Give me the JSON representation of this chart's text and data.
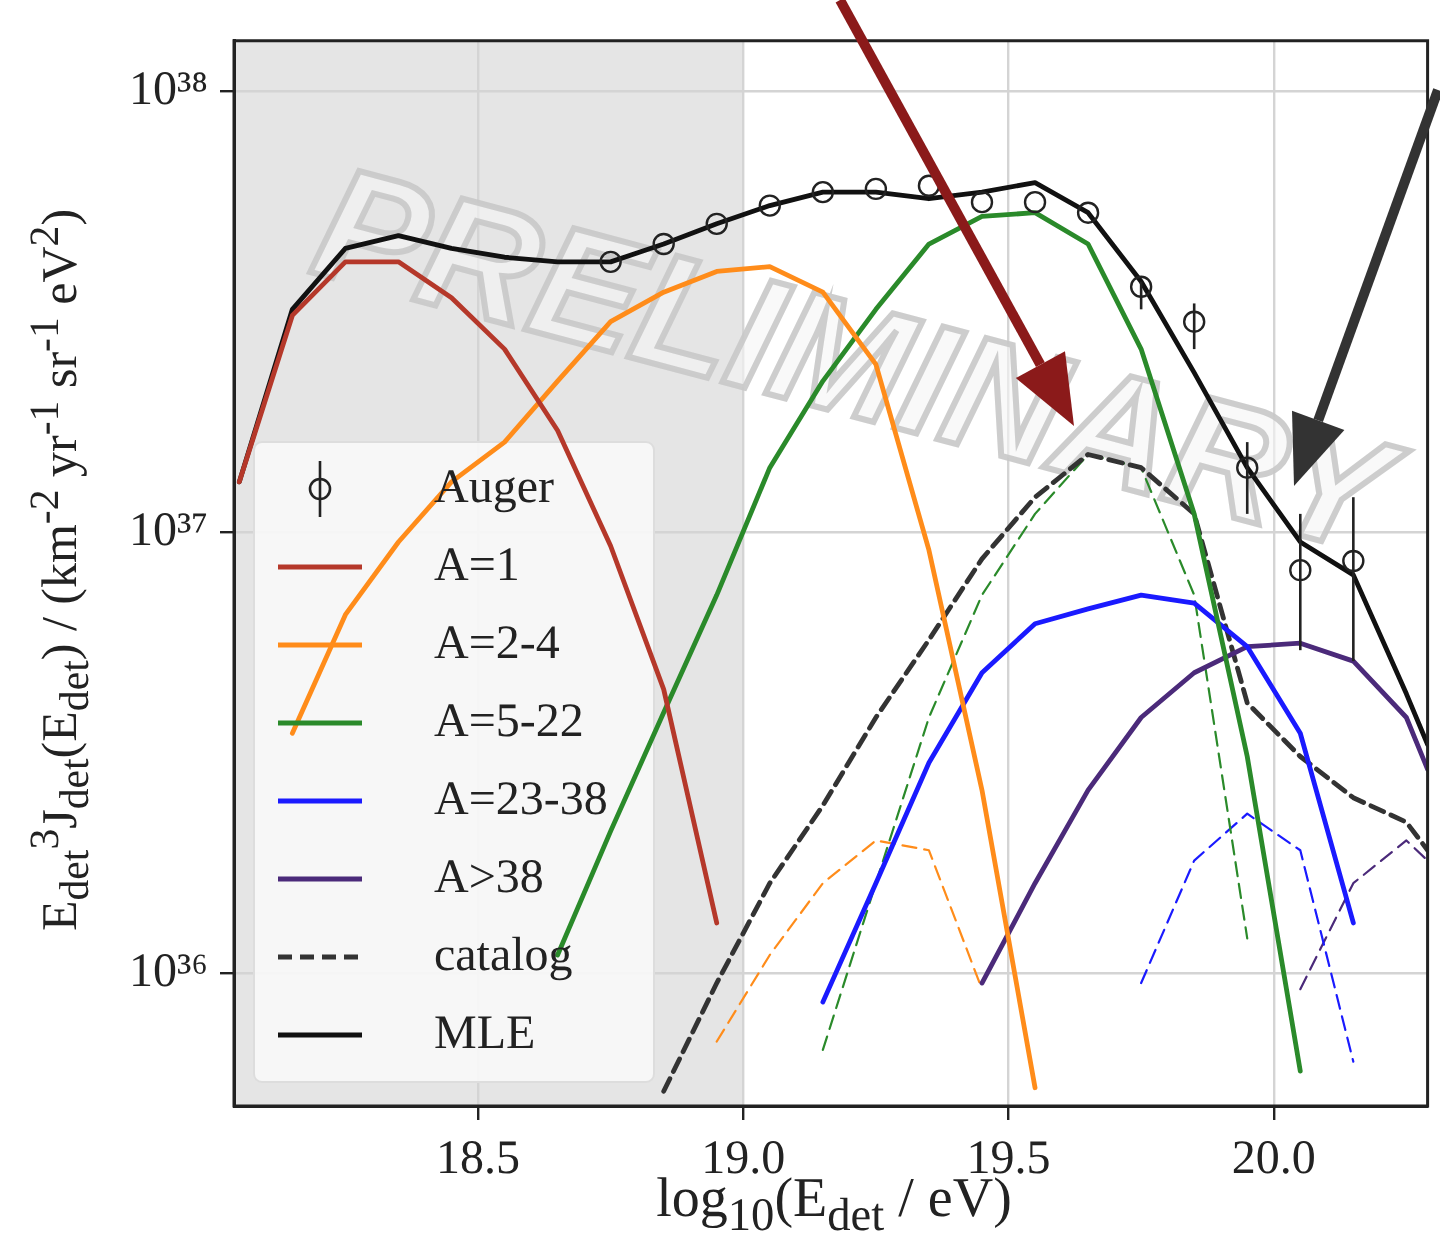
{
  "chart_data": {
    "type": "line",
    "xlabel": "log$_{10}$(E$_{det}$ / eV)",
    "ylabel": "E$_{det}$$^{3}$J$_{det}$(E$_{det}$) / (km$^{-2}$ yr$^{-1}$ sr$^{-1}$ eV$^{2}$)",
    "annotations": [
      "PRELIMINARY"
    ],
    "xlim": [
      18.04,
      20.29
    ],
    "xticks": [
      18.5,
      {
        "value": 19,
        "label": "19.0"
      },
      19.5,
      {
        "value": 20,
        "label": "20.0"
      }
    ],
    "ylim": [
      5e+35,
      1.3e+38
    ],
    "yticks": [
      {
        "value": 1e+36,
        "label": "10³⁶"
      },
      {
        "value": 1e+37,
        "label": "10³⁷"
      },
      {
        "value": 1e+38,
        "label": "10³⁸"
      }
    ],
    "log": true,
    "grid": true,
    "legend": "bottom left",
    "line_style": "solid",
    "marker": "none",
    "bands": [
      {
        "axis": "x",
        "from": 18.04,
        "to": 19.0,
        "color": "#e5e5e5"
      }
    ],
    "series": [
      {
        "name": "Auger",
        "type": "scatter",
        "marker": "circle",
        "color": "#222222",
        "x": [
          18.75,
          18.85,
          18.95,
          19.05,
          19.15,
          19.25,
          19.35,
          19.45,
          19.55,
          19.65,
          19.75,
          19.85,
          19.95,
          20.05,
          20.15
        ],
        "values": [
          4.1e+37,
          4.5e+37,
          5e+37,
          5.5e+37,
          5.9e+37,
          6e+37,
          6.1e+37,
          5.6e+37,
          5.6e+37,
          5.3e+37,
          3.6e+37,
          3e+37,
          1.4e+37,
          8.2e+36,
          8.6e+36
        ],
        "errors": [
          null,
          null,
          null,
          null,
          null,
          null,
          null,
          null,
          null,
          null,
          [
            3.2e+37,
            3.7e+37
          ],
          [
            2.6e+37,
            3.3e+37
          ],
          [
            1.1e+37,
            1.6e+37
          ],
          [
            5.4e+36,
            1.1e+37
          ],
          [
            5.1e+36,
            1.2e+37
          ]
        ]
      },
      {
        "name": "A=1",
        "color": "#b5382a",
        "x": [
          18.05,
          18.15,
          18.25,
          18.35,
          18.45,
          18.55,
          18.65,
          18.75,
          18.85,
          18.95
        ],
        "values": [
          1.3e+37,
          3.1e+37,
          4.1e+37,
          4.1e+37,
          3.4e+37,
          2.6e+37,
          1.7e+37,
          9.3e+36,
          4.4e+36,
          1.3e+36
        ]
      },
      {
        "name": "A=2-4",
        "color": "#ff8c1a",
        "x": [
          18.15,
          18.25,
          18.35,
          18.45,
          18.55,
          18.65,
          18.75,
          18.85,
          18.95,
          19.05,
          19.15,
          19.25,
          19.35,
          19.45,
          19.55
        ],
        "values": [
          3.5e+36,
          6.5e+36,
          9.5e+36,
          1.3e+37,
          1.6e+37,
          2.2e+37,
          3e+37,
          3.5e+37,
          3.9e+37,
          4e+37,
          3.5e+37,
          2.4e+37,
          9.1e+36,
          2.6e+36,
          5.5e+35
        ]
      },
      {
        "name": "A=5-22",
        "color": "#2a8a2a",
        "x": [
          18.65,
          18.75,
          18.85,
          18.95,
          19.05,
          19.15,
          19.25,
          19.35,
          19.45,
          19.55,
          19.65,
          19.75,
          19.85,
          19.95,
          20.05
        ],
        "values": [
          1.1e+36,
          2.1e+36,
          3.9e+36,
          7.2e+36,
          1.4e+37,
          2.2e+37,
          3.2e+37,
          4.5e+37,
          5.2e+37,
          5.3e+37,
          4.5e+37,
          2.6e+37,
          1.1e+37,
          3.1e+36,
          6e+35
        ]
      },
      {
        "name": "A=23-38",
        "color": "#1a1aff",
        "x": [
          19.15,
          19.25,
          19.35,
          19.45,
          19.55,
          19.65,
          19.75,
          19.85,
          19.95,
          20.05,
          20.15
        ],
        "values": [
          8.6e+35,
          1.6e+36,
          3e+36,
          4.8e+36,
          6.2e+36,
          6.7e+36,
          7.2e+36,
          6.9e+36,
          5.5e+36,
          3.5e+36,
          1.3e+36
        ]
      },
      {
        "name": "A>38",
        "color": "#4b2a7a",
        "x": [
          19.45,
          19.55,
          19.65,
          19.75,
          19.85,
          19.95,
          20.05,
          20.15,
          20.25,
          20.29
        ],
        "values": [
          9.5e+35,
          1.6e+36,
          2.6e+36,
          3.8e+36,
          4.8e+36,
          5.5e+36,
          5.6e+36,
          5.1e+36,
          3.8e+36,
          2.9e+36
        ]
      },
      {
        "name": "catalog",
        "color": "#333333",
        "line_style": "dashed",
        "x": [
          18.85,
          18.95,
          19.05,
          19.15,
          19.25,
          19.35,
          19.45,
          19.55,
          19.65,
          19.75,
          19.85,
          19.95,
          20.05,
          20.15,
          20.25,
          20.29
        ],
        "values": [
          5.4e+35,
          9.5e+35,
          1.6e+36,
          2.4e+36,
          3.8e+36,
          5.7e+36,
          8.7e+36,
          1.2e+37,
          1.5e+37,
          1.4e+37,
          1.1e+37,
          4.1e+36,
          3.1e+36,
          2.5e+36,
          2.2e+36,
          1.9e+36
        ]
      },
      {
        "name": "MLE",
        "color": "#111111",
        "x": [
          18.05,
          18.15,
          18.25,
          18.35,
          18.45,
          18.55,
          18.65,
          18.75,
          18.85,
          18.95,
          19.05,
          19.15,
          19.25,
          19.35,
          19.45,
          19.55,
          19.65,
          19.75,
          19.85,
          19.95,
          20.05,
          20.15,
          20.25,
          20.29
        ],
        "values": [
          1.3e+37,
          3.2e+37,
          4.4e+37,
          4.7e+37,
          4.4e+37,
          4.2e+37,
          4.1e+37,
          4.1e+37,
          4.5e+37,
          5e+37,
          5.5e+37,
          5.9e+37,
          5.9e+37,
          5.7e+37,
          5.9e+37,
          6.2e+37,
          5.3e+37,
          3.7e+37,
          2.3e+37,
          1.4e+37,
          9.5e+36,
          8e+36,
          4.3e+36,
          3.3e+36
        ]
      },
      {
        "color": "#ff8c1a",
        "line_style": "dashed",
        "x": [
          18.95,
          19.05,
          19.15,
          19.25,
          19.35,
          19.45
        ],
        "values": [
          7e+35,
          1.1e+36,
          1.6e+36,
          2e+36,
          1.9e+36,
          9.2e+35
        ]
      },
      {
        "color": "#2a8a2a",
        "line_style": "dashed",
        "x": [
          19.15,
          19.25,
          19.35,
          19.45,
          19.55,
          19.65,
          19.75,
          19.85,
          19.95
        ],
        "values": [
          6.7e+35,
          1.6e+36,
          3.8e+36,
          7.2e+36,
          1.1e+37,
          1.5e+37,
          1.4e+37,
          7.2e+36,
          1.2e+36
        ]
      },
      {
        "color": "#1a1aff",
        "line_style": "dashed",
        "x": [
          19.75,
          19.85,
          19.95,
          20.05,
          20.15
        ],
        "values": [
          9.5e+35,
          1.8e+36,
          2.3e+36,
          1.9e+36,
          6.3e+35
        ]
      },
      {
        "color": "#4b2a7a",
        "line_style": "dashed",
        "x": [
          20.05,
          20.15,
          20.25,
          20.29
        ],
        "values": [
          9.2e+35,
          1.6e+36,
          2e+36,
          1.8e+36
        ]
      }
    ]
  }
}
